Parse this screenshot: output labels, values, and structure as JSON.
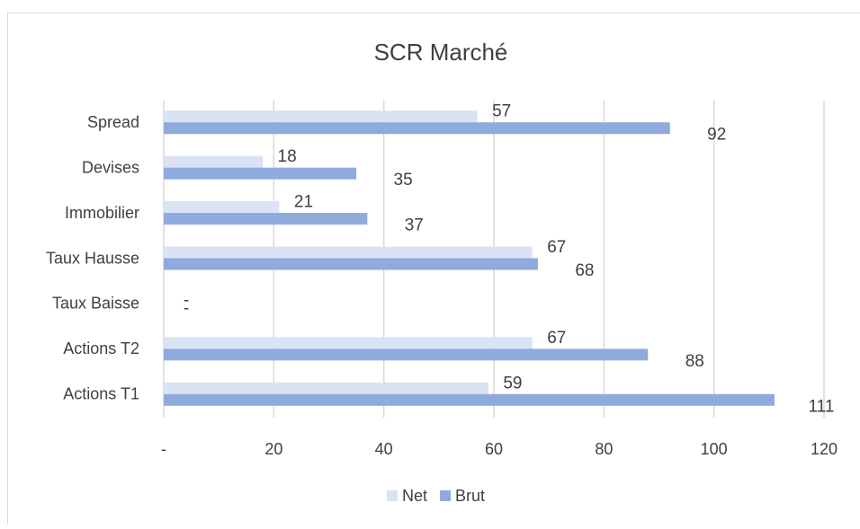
{
  "chart_data": {
    "type": "bar",
    "orientation": "horizontal",
    "title": "SCR Marché",
    "categories": [
      "Spread",
      "Devises",
      "Immobilier",
      "Taux Hausse",
      "Taux Baisse",
      "Actions T2",
      "Actions T1"
    ],
    "series": [
      {
        "name": "Net",
        "color": "#dae3f3",
        "values": [
          57,
          18,
          21,
          67,
          0,
          67,
          59
        ],
        "value_labels": [
          "57",
          "18",
          "21",
          "67",
          "-",
          "67",
          "59"
        ]
      },
      {
        "name": "Brut",
        "color": "#8faadc",
        "values": [
          92,
          35,
          37,
          68,
          0,
          88,
          111
        ],
        "value_labels": [
          "92",
          "35",
          "37",
          "68",
          "-",
          "88",
          "111"
        ]
      }
    ],
    "xlim": [
      0,
      120
    ],
    "xticks": [
      {
        "value": 0,
        "label": "-"
      },
      20,
      40,
      60,
      80,
      100,
      120
    ],
    "grid": true,
    "legend": "bottom"
  }
}
